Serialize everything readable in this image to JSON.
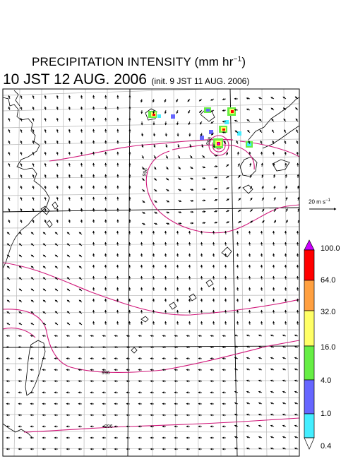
{
  "title": {
    "main": "PRECIPITATION INTENSITY (mm hr",
    "exp": "−1",
    "close": ")",
    "valid": "10 JST 12 AUG. 2006",
    "init": "(init. 9 JST 11 AUG. 2006)"
  },
  "wind_scale": {
    "text": "20 m s",
    "exp": "−1",
    "speed_ms": 20
  },
  "pressure_labels": [
    "998",
    "996",
    "996",
    "996"
  ],
  "colorbar": {
    "unit": "mm hr−1",
    "levels": [
      "100.0",
      "64.0",
      "32.0",
      "16.0",
      "4.0",
      "1.0",
      "0.4"
    ],
    "colors": [
      "#cc00ff",
      "#ff0000",
      "#ffa040",
      "#ffff66",
      "#66ee44",
      "#6666ff",
      "#44eeff"
    ]
  }
}
